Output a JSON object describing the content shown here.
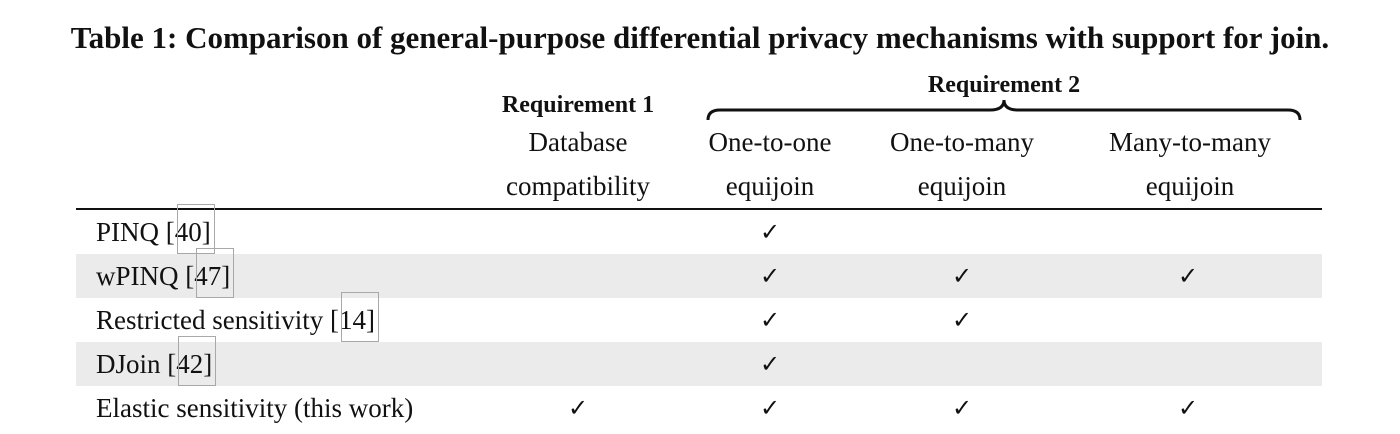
{
  "table": {
    "caption": "Table 1: Comparison of general-purpose differential privacy mechanisms with support for join.",
    "requirement1": "Requirement 1",
    "requirement2": "Requirement 2",
    "columns": [
      {
        "line1": "Database",
        "line2": "compatibility"
      },
      {
        "line1": "One-to-one",
        "line2": "equijoin"
      },
      {
        "line1": "One-to-many",
        "line2": "equijoin"
      },
      {
        "line1": "Many-to-many",
        "line2": "equijoin"
      }
    ],
    "check_mark": "✓",
    "rows": [
      {
        "name": "PINQ [",
        "ref": "40",
        "close": "]",
        "checks": [
          false,
          true,
          false,
          false
        ]
      },
      {
        "name": "wPINQ [",
        "ref": "47",
        "close": "]",
        "checks": [
          false,
          true,
          true,
          true
        ]
      },
      {
        "name": "Restricted sensitivity [",
        "ref": "14",
        "close": "]",
        "checks": [
          false,
          true,
          true,
          false
        ]
      },
      {
        "name": "DJoin [",
        "ref": "42",
        "close": "]",
        "checks": [
          false,
          true,
          false,
          false
        ]
      },
      {
        "name": "Elastic sensitivity (this work)",
        "ref": "",
        "close": "",
        "checks": [
          true,
          true,
          true,
          true
        ]
      }
    ]
  }
}
